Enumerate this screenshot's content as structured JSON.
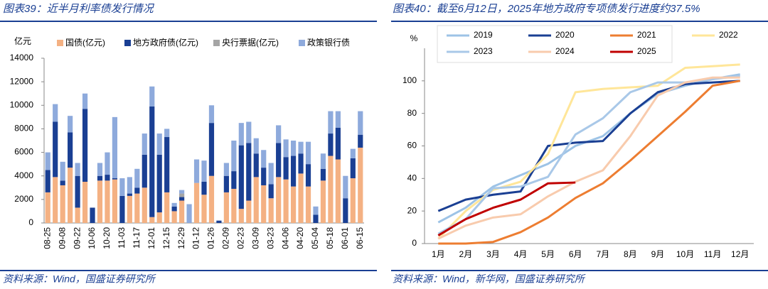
{
  "chart_data": [
    {
      "type": "bar",
      "stacked": true,
      "title": "图表39：近半月利率债发行情况",
      "source": "资料来源：Wind，国盛证券研究所",
      "y_label": "亿元",
      "categories": [
        "08-25",
        null,
        "09-08",
        null,
        "09-22",
        null,
        "10-06",
        null,
        "10-20",
        null,
        "11-03",
        null,
        "11-17",
        null,
        "12-01",
        null,
        "12-15",
        null,
        "12-29",
        null,
        "01-12",
        null,
        "01-26",
        null,
        "02-09",
        null,
        "02-23",
        null,
        "03-09",
        null,
        "03-23",
        null,
        "04-06",
        null,
        "04-20",
        null,
        "05-04",
        null,
        "05-18",
        null,
        "06-01",
        null,
        "06-15"
      ],
      "series": [
        {
          "name": "国债(亿元)",
          "color": "#f4b183",
          "values": [
            2600,
            3900,
            3200,
            4700,
            1300,
            3500,
            0,
            3600,
            3600,
            3700,
            0,
            2300,
            2500,
            3000,
            500,
            900,
            2600,
            1000,
            1900,
            0,
            3400,
            2400,
            4000,
            0,
            2600,
            2900,
            1200,
            1900,
            3900,
            3200,
            2100,
            3900,
            3700,
            3100,
            4200,
            3100,
            0,
            3600,
            5700,
            5400,
            0,
            3800,
            6400
          ]
        },
        {
          "name": "地方政府债(亿元)",
          "color": "#1a3f93",
          "values": [
            1900,
            4700,
            400,
            3000,
            2700,
            6200,
            1300,
            400,
            500,
            100,
            2300,
            200,
            500,
            2800,
            9400,
            4900,
            4700,
            400,
            300,
            0,
            0,
            1100,
            4500,
            200,
            1400,
            1500,
            5400,
            4900,
            2000,
            1500,
            1200,
            2900,
            1900,
            2600,
            1700,
            1900,
            700,
            1000,
            1900,
            2700,
            2100,
            1700,
            1100
          ]
        },
        {
          "name": "央行票据(亿元)",
          "color": "#a5a5a5",
          "values": [
            0,
            0,
            0,
            0,
            0,
            0,
            0,
            0,
            0,
            0,
            0,
            0,
            0,
            0,
            0,
            0,
            0,
            0,
            300,
            0,
            0,
            0,
            0,
            0,
            0,
            0,
            0,
            0,
            0,
            0,
            0,
            0,
            0,
            0,
            0,
            0,
            0,
            0,
            0,
            0,
            0,
            0,
            0
          ]
        },
        {
          "name": "政策银行债",
          "color": "#8eaadc",
          "values": [
            1500,
            1500,
            1600,
            1400,
            1100,
            1300,
            0,
            1100,
            1900,
            5200,
            1500,
            1400,
            1600,
            1800,
            1700,
            1800,
            700,
            300,
            300,
            1600,
            2000,
            1800,
            1500,
            0,
            1100,
            2600,
            1900,
            1800,
            1300,
            1500,
            1800,
            1500,
            1500,
            1300,
            1000,
            1900,
            700,
            1300,
            1900,
            1400,
            1900,
            800,
            2000
          ]
        }
      ],
      "ylim": [
        0,
        14000
      ],
      "yticks": [
        0,
        2000,
        4000,
        6000,
        8000,
        10000,
        12000,
        14000
      ]
    },
    {
      "type": "line",
      "title": "图表40：截至6月12日，2025年地方政府专项债发行进度约37.5%",
      "source": "资料来源：Wind，新华网，国盛证券研究所",
      "y_label": "%",
      "categories": [
        "1月",
        "2月",
        "3月",
        "4月",
        "5月",
        "6月",
        "7月",
        "8月",
        "9月",
        "10月",
        "11月",
        "12月"
      ],
      "series": [
        {
          "name": "2019",
          "color": "#9dc3e6",
          "values": [
            13,
            22,
            35,
            42,
            49,
            60,
            66,
            80,
            92,
            97,
            101,
            104
          ]
        },
        {
          "name": "2020",
          "color": "#1a3f93",
          "values": [
            20,
            27,
            30,
            32,
            60,
            62,
            63,
            80,
            93,
            98,
            99,
            100
          ]
        },
        {
          "name": "2021",
          "color": "#ed7d31",
          "values": [
            0,
            0,
            1,
            7,
            16,
            28,
            37,
            51,
            66,
            81,
            97,
            100
          ]
        },
        {
          "name": "2022",
          "color": "#ffe699",
          "values": [
            3,
            20,
            33,
            38,
            55,
            93,
            95,
            96,
            97,
            108,
            109,
            110
          ]
        },
        {
          "name": "2023",
          "color": "#a9c8e8",
          "values": [
            6,
            15,
            34,
            35,
            41,
            67,
            77,
            93,
            99,
            99,
            101,
            103
          ]
        },
        {
          "name": "2024",
          "color": "#f8cbad",
          "values": [
            3,
            11,
            16,
            18,
            29,
            38,
            45,
            66,
            91,
            99,
            102,
            102
          ]
        },
        {
          "name": "2025",
          "color": "#c00000",
          "values": [
            5,
            15,
            22,
            27,
            37,
            37.5,
            null,
            null,
            null,
            null,
            null,
            null
          ]
        }
      ],
      "ylim": [
        0,
        120
      ],
      "yticks": [
        0,
        20,
        40,
        60,
        80,
        100
      ]
    }
  ]
}
